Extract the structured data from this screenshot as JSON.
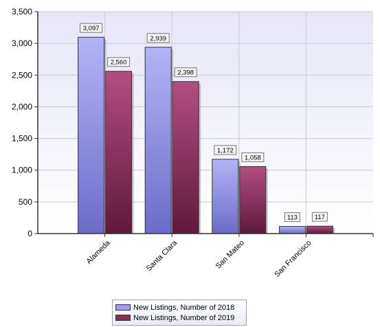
{
  "chart_data": {
    "type": "bar",
    "categories": [
      "Alameda",
      "Santa Clara",
      "San Mateo",
      "San Francisco"
    ],
    "series": [
      {
        "name": "New Listings, Number of 2018",
        "values": [
          3097,
          2939,
          1172,
          113
        ],
        "labels": [
          "3,097",
          "2,939",
          "1,172",
          "113"
        ],
        "color": "#9d9def"
      },
      {
        "name": "New Listings, Number of 2019",
        "values": [
          2560,
          2398,
          1058,
          117
        ],
        "labels": [
          "2,560",
          "2,398",
          "1,058",
          "117"
        ],
        "color": "#8c2c5b"
      }
    ],
    "yticks": [
      "0",
      "500",
      "1,000",
      "1,500",
      "2,000",
      "2,500",
      "3,000",
      "3,500"
    ],
    "ylim": [
      0,
      3500
    ],
    "grid": true,
    "legend_position": "bottom"
  }
}
